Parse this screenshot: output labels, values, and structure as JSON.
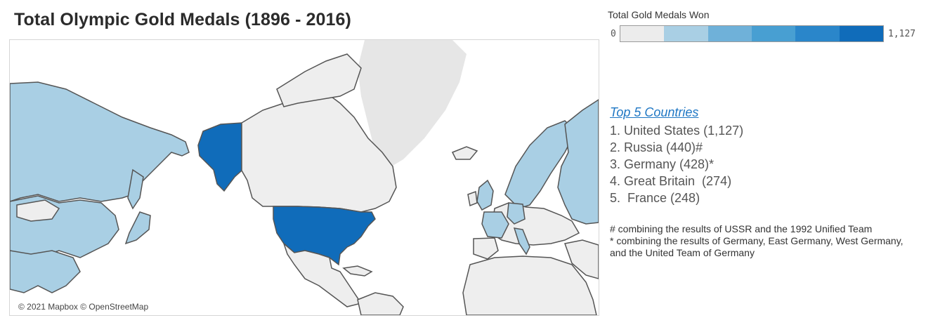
{
  "title": "Total Olympic Gold Medals (1896 - 2016)",
  "legend": {
    "title": "Total Gold Medals Won",
    "min_label": "0",
    "max_label": "1,127",
    "colors": [
      "#ececec",
      "#a9cfe4",
      "#6fb1d9",
      "#489fd2",
      "#2a86ca",
      "#106cba"
    ]
  },
  "map": {
    "attribution": "© 2021 Mapbox © OpenStreetMap",
    "land_color": "#eeeeee",
    "border_color": "#555555",
    "ice_color": "#e6e6e6",
    "highlight_colors": {
      "high": "#106cba",
      "low": "#a9cfe4"
    }
  },
  "top5": {
    "heading": "Top 5 Countries",
    "items": [
      "1. United States (1,127)",
      "2. Russia (440)#",
      "3. Germany (428)*",
      "4. Great Britain  (274)",
      "5.  France (248)"
    ]
  },
  "notes": {
    "line1": "# combining the results of USSR and the 1992 Unified Team",
    "line2": "* combining the results of Germany, East Germany, West Germany, and the United Team of Germany"
  }
}
